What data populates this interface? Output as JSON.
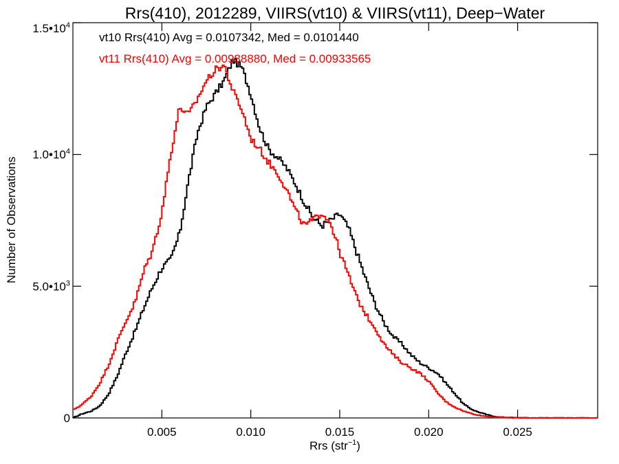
{
  "chart_data": {
    "type": "line",
    "title": "Rrs(410), 2012289, VIIRS(vt10) & VIIRS(vt11), Deep−Water",
    "xlabel_main": "Rrs (str",
    "xlabel_sup": "−1",
    "xlabel_end": ")",
    "ylabel": "Number of Observations",
    "xlim": [
      0.0,
      0.0295
    ],
    "ylim": [
      0,
      15000
    ],
    "x_ticks": [
      {
        "value": 0.005,
        "label": "0.005"
      },
      {
        "value": 0.01,
        "label": "0.010"
      },
      {
        "value": 0.015,
        "label": "0.015"
      },
      {
        "value": 0.02,
        "label": "0.020"
      },
      {
        "value": 0.025,
        "label": "0.025"
      }
    ],
    "y_ticks": [
      {
        "value": 0,
        "base": "0",
        "sup": ""
      },
      {
        "value": 5000,
        "base": "5.0•10",
        "sup": "3"
      },
      {
        "value": 10000,
        "base": "1.0•10",
        "sup": "4"
      },
      {
        "value": 15000,
        "base": "1.5•10",
        "sup": "4"
      }
    ],
    "grid": false,
    "legend_position": "top-left",
    "series": [
      {
        "name": "vt10",
        "color": "#000000",
        "label": "vt10 Rrs(410) Avg = 0.0107342, Med = 0.0101440",
        "points": [
          [
            0.0,
            0
          ],
          [
            0.0005,
            150
          ],
          [
            0.001,
            250
          ],
          [
            0.0015,
            450
          ],
          [
            0.002,
            900
          ],
          [
            0.0025,
            1600
          ],
          [
            0.003,
            2500
          ],
          [
            0.0035,
            3300
          ],
          [
            0.004,
            4200
          ],
          [
            0.0045,
            5000
          ],
          [
            0.005,
            5700
          ],
          [
            0.0055,
            6000
          ],
          [
            0.006,
            7000
          ],
          [
            0.0065,
            9000
          ],
          [
            0.007,
            10800
          ],
          [
            0.0075,
            11800
          ],
          [
            0.008,
            12300
          ],
          [
            0.0085,
            12800
          ],
          [
            0.009,
            13600
          ],
          [
            0.0095,
            13300
          ],
          [
            0.01,
            12300
          ],
          [
            0.0105,
            11000
          ],
          [
            0.011,
            10200
          ],
          [
            0.0115,
            9900
          ],
          [
            0.012,
            9500
          ],
          [
            0.0125,
            8900
          ],
          [
            0.013,
            8200
          ],
          [
            0.0135,
            7600
          ],
          [
            0.014,
            7300
          ],
          [
            0.0145,
            7500
          ],
          [
            0.015,
            7750
          ],
          [
            0.0155,
            7200
          ],
          [
            0.016,
            6200
          ],
          [
            0.0165,
            5200
          ],
          [
            0.017,
            4300
          ],
          [
            0.0175,
            3600
          ],
          [
            0.018,
            3100
          ],
          [
            0.0185,
            2800
          ],
          [
            0.019,
            2400
          ],
          [
            0.0195,
            2100
          ],
          [
            0.02,
            1900
          ],
          [
            0.0205,
            1700
          ],
          [
            0.021,
            1300
          ],
          [
            0.0215,
            900
          ],
          [
            0.022,
            500
          ],
          [
            0.0225,
            300
          ],
          [
            0.023,
            180
          ],
          [
            0.0235,
            80
          ],
          [
            0.024,
            30
          ],
          [
            0.025,
            8
          ],
          [
            0.026,
            2
          ],
          [
            0.0295,
            0
          ]
        ]
      },
      {
        "name": "vt11",
        "color": "#ff0000",
        "label": "vt11 Rrs(410) Avg = 0.00988880, Med = 0.00933565",
        "points": [
          [
            0.0,
            300
          ],
          [
            0.0005,
            500
          ],
          [
            0.001,
            800
          ],
          [
            0.0015,
            1300
          ],
          [
            0.002,
            2000
          ],
          [
            0.0025,
            2900
          ],
          [
            0.003,
            3700
          ],
          [
            0.0035,
            4400
          ],
          [
            0.004,
            5600
          ],
          [
            0.0045,
            6400
          ],
          [
            0.005,
            7800
          ],
          [
            0.0055,
            10000
          ],
          [
            0.006,
            11800
          ],
          [
            0.0065,
            11500
          ],
          [
            0.007,
            12100
          ],
          [
            0.0075,
            12800
          ],
          [
            0.008,
            13200
          ],
          [
            0.0085,
            13400
          ],
          [
            0.009,
            12400
          ],
          [
            0.0095,
            11700
          ],
          [
            0.01,
            10600
          ],
          [
            0.0105,
            10200
          ],
          [
            0.011,
            9700
          ],
          [
            0.0115,
            9300
          ],
          [
            0.012,
            8700
          ],
          [
            0.0125,
            7900
          ],
          [
            0.013,
            7300
          ],
          [
            0.0135,
            7500
          ],
          [
            0.014,
            7800
          ],
          [
            0.0145,
            7400
          ],
          [
            0.015,
            6300
          ],
          [
            0.0155,
            5400
          ],
          [
            0.016,
            4500
          ],
          [
            0.0165,
            3900
          ],
          [
            0.017,
            3400
          ],
          [
            0.0175,
            2800
          ],
          [
            0.018,
            2400
          ],
          [
            0.0185,
            2100
          ],
          [
            0.019,
            1900
          ],
          [
            0.0195,
            1700
          ],
          [
            0.02,
            1400
          ],
          [
            0.0205,
            950
          ],
          [
            0.021,
            600
          ],
          [
            0.0215,
            400
          ],
          [
            0.022,
            250
          ],
          [
            0.0225,
            150
          ],
          [
            0.023,
            80
          ],
          [
            0.0235,
            40
          ],
          [
            0.024,
            20
          ],
          [
            0.025,
            5
          ],
          [
            0.026,
            0
          ],
          [
            0.0295,
            0
          ]
        ]
      }
    ]
  }
}
